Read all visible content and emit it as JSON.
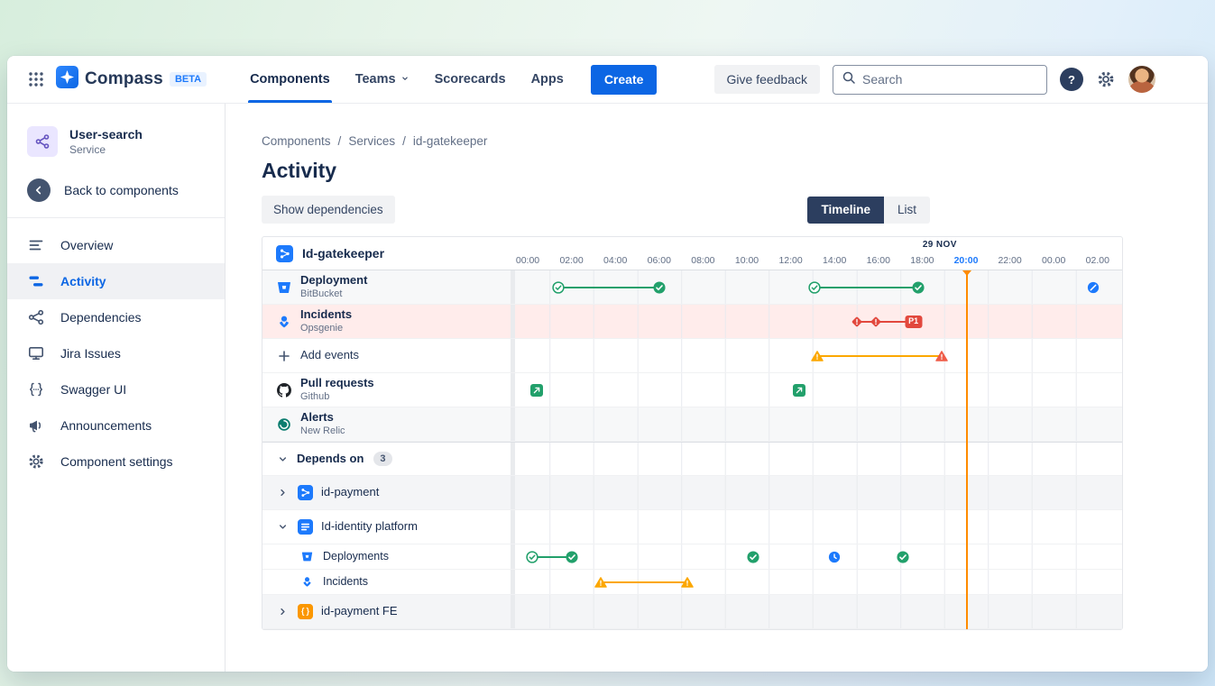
{
  "topnav": {
    "brand": "Compass",
    "beta_badge": "BETA",
    "nav_items": [
      {
        "label": "Components",
        "active": true
      },
      {
        "label": "Teams",
        "has_dropdown": true
      },
      {
        "label": "Scorecards"
      },
      {
        "label": "Apps"
      }
    ],
    "create_button": "Create",
    "give_feedback_button": "Give feedback",
    "search_placeholder": "Search",
    "help_glyph": "?"
  },
  "sidebar": {
    "component": {
      "name": "User-search",
      "type": "Service"
    },
    "back_link": "Back to components",
    "menu": [
      {
        "label": "Overview"
      },
      {
        "label": "Activity",
        "active": true
      },
      {
        "label": "Dependencies"
      },
      {
        "label": "Jira Issues"
      },
      {
        "label": "Swagger UI"
      },
      {
        "label": "Announcements"
      },
      {
        "label": "Component settings"
      }
    ]
  },
  "main": {
    "breadcrumb": [
      "Components",
      "Services",
      "id-gatekeeper"
    ],
    "page_title": "Activity",
    "show_dependencies_button": "Show dependencies",
    "view_toggle": [
      {
        "label": "Timeline",
        "selected": true
      },
      {
        "label": "List",
        "selected": false
      }
    ]
  },
  "timeline": {
    "component_label": "Id-gatekeeper",
    "date_label": "29 NOV",
    "ticks": [
      "00:00",
      "02:00",
      "04:00",
      "06:00",
      "08:00",
      "10:00",
      "12:00",
      "14:00",
      "16:00",
      "18:00",
      "20:00",
      "22:00",
      "00.00",
      "02.00"
    ],
    "highlighted_tick": "20:00",
    "now_line_hour": 20,
    "now_line_color": "#ff8b00",
    "rows": [
      {
        "kind": "event-row",
        "label": "Deployment",
        "sublabel": "BitBucket",
        "icon": "bitbucket-icon",
        "bg": "#f7f8f9",
        "lines": [
          {
            "from": 1.4,
            "to": 6,
            "color": "#22a06b"
          },
          {
            "from": 13.1,
            "to": 17.8,
            "color": "#22a06b"
          }
        ],
        "markers": [
          {
            "t": 1.4,
            "icon": "success-outline-icon"
          },
          {
            "t": 6,
            "icon": "success-icon"
          },
          {
            "t": 13.1,
            "icon": "success-outline-icon"
          },
          {
            "t": 17.8,
            "icon": "success-icon"
          },
          {
            "t": 25.8,
            "icon": "cancelled-icon"
          }
        ]
      },
      {
        "kind": "event-row",
        "label": "Incidents",
        "sublabel": "Opsgenie",
        "icon": "opsgenie-icon",
        "bg": "#ffeceb",
        "lines": [
          {
            "from": 15,
            "to": 17.6,
            "color": "#e2483d"
          }
        ],
        "markers": [
          {
            "t": 15,
            "icon": "incident-diamond-icon"
          },
          {
            "t": 15.9,
            "icon": "incident-diamond-icon"
          },
          {
            "t": 17.6,
            "icon": "p1-badge",
            "text": "P1"
          }
        ]
      },
      {
        "kind": "add-row",
        "label": "Add events",
        "icon": "plus-icon",
        "bg": "#ffffff",
        "lines": [
          {
            "from": 13.2,
            "to": 18.9,
            "color": "#fca700"
          }
        ],
        "markers": [
          {
            "t": 13.2,
            "icon": "warning-amber-icon"
          },
          {
            "t": 18.9,
            "icon": "warning-red-icon"
          }
        ]
      },
      {
        "kind": "event-row",
        "label": "Pull requests",
        "sublabel": "Github",
        "icon": "github-icon",
        "bg": "#ffffff",
        "lines": [],
        "markers": [
          {
            "t": 0.4,
            "icon": "pull-request-icon"
          },
          {
            "t": 12.4,
            "icon": "pull-request-icon"
          }
        ]
      },
      {
        "kind": "event-row",
        "label": "Alerts",
        "sublabel": "New Relic",
        "icon": "newrelic-icon",
        "bg": "#f7f8f9",
        "lines": [],
        "markers": []
      },
      {
        "kind": "section-row",
        "label": "Depends on",
        "count": "3",
        "bg": "#ffffff"
      },
      {
        "kind": "dep-row",
        "collapsed": true,
        "label": "id-payment",
        "icon": "component-blue-icon",
        "bg": "#f4f5f7",
        "lines": [],
        "markers": []
      },
      {
        "kind": "dep-row",
        "collapsed": false,
        "label": "Id-identity platform",
        "icon": "component-navy-icon",
        "bg": "#ffffff",
        "lines": [],
        "markers": []
      },
      {
        "kind": "sub-row",
        "label": "Deployments",
        "icon": "bitbucket-icon",
        "bg": "#ffffff",
        "lines": [
          {
            "from": 0.2,
            "to": 2,
            "color": "#22a06b"
          }
        ],
        "markers": [
          {
            "t": 0.2,
            "icon": "success-outline-icon"
          },
          {
            "t": 2,
            "icon": "success-icon"
          },
          {
            "t": 10.3,
            "icon": "success-icon"
          },
          {
            "t": 14,
            "icon": "pending-clock-icon"
          },
          {
            "t": 17.1,
            "icon": "success-icon"
          }
        ]
      },
      {
        "kind": "sub-row",
        "label": "Incidents",
        "icon": "opsgenie-icon",
        "bg": "#ffffff",
        "lines": [
          {
            "from": 3.35,
            "to": 7.3,
            "color": "#fca700"
          }
        ],
        "markers": [
          {
            "t": 3.35,
            "icon": "warning-amber-icon"
          },
          {
            "t": 7.3,
            "icon": "warning-amber-icon"
          }
        ]
      },
      {
        "kind": "dep-row",
        "collapsed": true,
        "label": "id-payment FE",
        "icon": "component-orange-icon",
        "bg": "#f4f5f7",
        "lines": [],
        "markers": []
      }
    ]
  }
}
